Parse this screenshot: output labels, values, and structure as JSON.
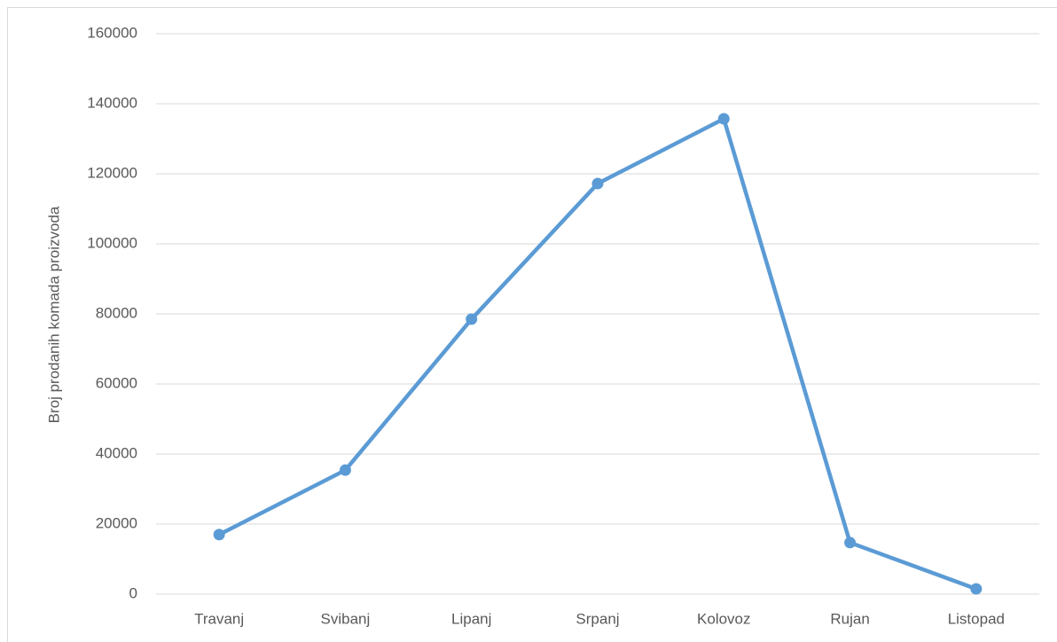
{
  "chart_data": {
    "type": "line",
    "y_label": "Broj prodanih komada proizvoda",
    "categories": [
      "Travanj",
      "Svibanj",
      "Lipanj",
      "Srpanj",
      "Kolovoz",
      "Rujan",
      "Listopad"
    ],
    "series": [
      {
        "color": "#5b9bd5",
        "values": [
          17000,
          35400,
          78500,
          117200,
          135700,
          14700,
          1500
        ]
      }
    ],
    "ylim": [
      0,
      160000
    ],
    "yticks": [
      0,
      20000,
      40000,
      60000,
      80000,
      100000,
      120000,
      140000,
      160000
    ],
    "grid": true
  }
}
